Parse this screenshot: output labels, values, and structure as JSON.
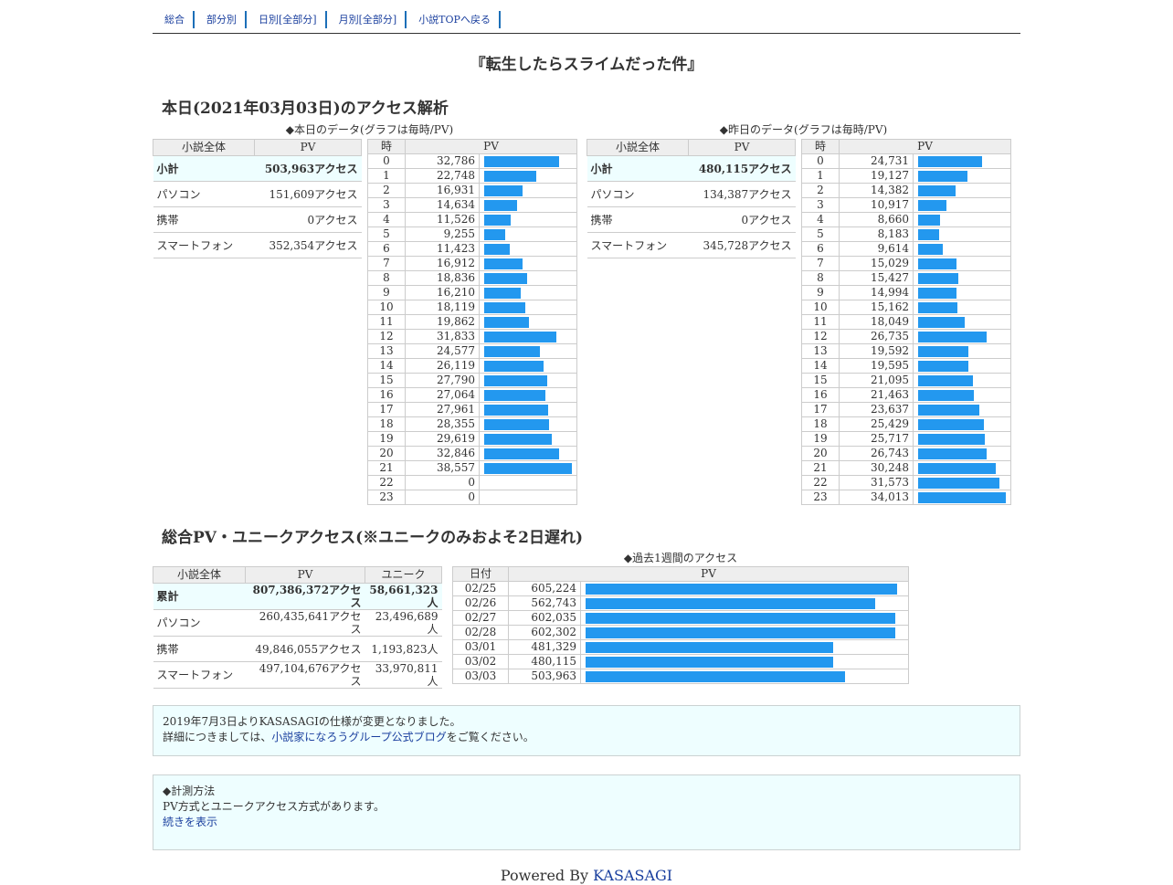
{
  "nav": [
    "総合",
    "部分別",
    "日別[全部分]",
    "月別[全部分]",
    "小説TOPへ戻る"
  ],
  "title": "『転生したらスライムだった件』",
  "today_heading": "本日(2021年03月03日)のアクセス解析",
  "today_caption": "◆本日のデータ(グラフは毎時/PV)",
  "yesterday_caption": "◆昨日のデータ(グラフは毎時/PV)",
  "summary_headers": [
    "小説全体",
    "PV"
  ],
  "today_summary": [
    {
      "label": "小計",
      "value": "503,963アクセス"
    },
    {
      "label": "パソコン",
      "value": "151,609アクセス"
    },
    {
      "label": "携帯",
      "value": "0アクセス"
    },
    {
      "label": "スマートフォン",
      "value": "352,354アクセス"
    }
  ],
  "yesterday_summary": [
    {
      "label": "小計",
      "value": "480,115アクセス"
    },
    {
      "label": "パソコン",
      "value": "134,387アクセス"
    },
    {
      "label": "携帯",
      "value": "0アクセス"
    },
    {
      "label": "スマートフォン",
      "value": "345,728アクセス"
    }
  ],
  "hour_headers": [
    "時",
    "PV"
  ],
  "today_hours": [
    "32,786",
    "22,748",
    "16,931",
    "14,634",
    "11,526",
    "9,255",
    "11,423",
    "16,912",
    "18,836",
    "16,210",
    "18,119",
    "19,862",
    "31,833",
    "24,577",
    "26,119",
    "27,790",
    "27,064",
    "27,961",
    "28,355",
    "29,619",
    "32,846",
    "38,557",
    "0",
    "0"
  ],
  "yesterday_hours": [
    "24,731",
    "19,127",
    "14,382",
    "10,917",
    "8,660",
    "8,183",
    "9,614",
    "15,029",
    "15,427",
    "14,994",
    "15,162",
    "18,049",
    "26,735",
    "19,592",
    "19,595",
    "21,095",
    "21,463",
    "23,637",
    "25,429",
    "25,717",
    "26,743",
    "30,248",
    "31,573",
    "34,013"
  ],
  "total_heading": "総合PV・ユニークアクセス(※ユニークのみおよそ2日遅れ)",
  "total_headers": [
    "小説全体",
    "PV",
    "ユニーク"
  ],
  "total_summary": [
    {
      "label": "累計",
      "pv": "807,386,372アクセス",
      "unique": "58,661,323人"
    },
    {
      "label": "パソコン",
      "pv": "260,435,641アクセス",
      "unique": "23,496,689人"
    },
    {
      "label": "携帯",
      "pv": "49,846,055アクセス",
      "unique": "1,193,823人"
    },
    {
      "label": "スマートフォン",
      "pv": "497,104,676アクセス",
      "unique": "33,970,811人"
    }
  ],
  "week_caption": "◆過去1週間のアクセス",
  "week_headers": [
    "日付",
    "PV"
  ],
  "week": [
    {
      "date": "02/25",
      "pv": "605,224"
    },
    {
      "date": "02/26",
      "pv": "562,743"
    },
    {
      "date": "02/27",
      "pv": "602,035"
    },
    {
      "date": "02/28",
      "pv": "602,302"
    },
    {
      "date": "03/01",
      "pv": "481,329"
    },
    {
      "date": "03/02",
      "pv": "480,115"
    },
    {
      "date": "03/03",
      "pv": "503,963"
    }
  ],
  "notice": {
    "line1": "2019年7月3日よりKASASAGIの仕様が変更となりました。",
    "line2_pre": "詳細につきましては、",
    "link": "小説家になろうグループ公式ブログ",
    "line2_post": "をご覧ください。"
  },
  "method": {
    "title": "◆計測方法",
    "text": "PV方式とユニークアクセス方式があります。",
    "link": "続きを表示"
  },
  "footer": {
    "prefix": "Powered By ",
    "link": "KASASAGI"
  },
  "colors": {
    "bar": "#2398ef",
    "header_bg": "#eeeeee",
    "highlight_bg": "#eefeff"
  }
}
